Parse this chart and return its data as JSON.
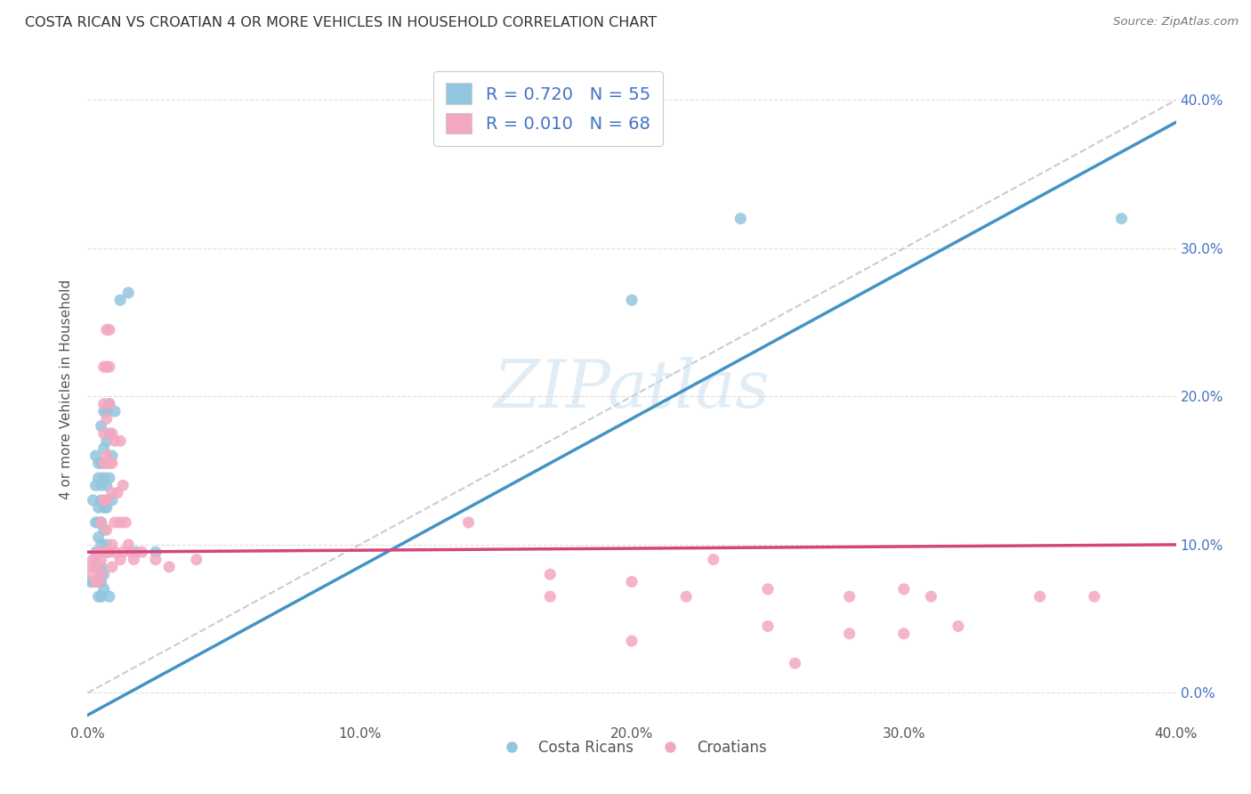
{
  "title": "COSTA RICAN VS CROATIAN 4 OR MORE VEHICLES IN HOUSEHOLD CORRELATION CHART",
  "source": "Source: ZipAtlas.com",
  "ylabel": "4 or more Vehicles in Household",
  "xlim": [
    0.0,
    0.4
  ],
  "ylim": [
    -0.02,
    0.43
  ],
  "yticks": [
    0.0,
    0.1,
    0.2,
    0.3,
    0.4
  ],
  "xticks": [
    0.0,
    0.1,
    0.2,
    0.3,
    0.4
  ],
  "costa_rican_color": "#92C5DE",
  "croatian_color": "#F4A8C0",
  "costa_rican_line_color": "#4393C3",
  "croatian_line_color": "#D6457A",
  "diagonal_color": "#cccccc",
  "background_color": "#ffffff",
  "grid_color": "#e0e0e0",
  "costa_rican_scatter": [
    [
      0.001,
      0.075
    ],
    [
      0.002,
      0.13
    ],
    [
      0.002,
      0.075
    ],
    [
      0.003,
      0.16
    ],
    [
      0.003,
      0.14
    ],
    [
      0.003,
      0.115
    ],
    [
      0.003,
      0.095
    ],
    [
      0.003,
      0.085
    ],
    [
      0.003,
      0.075
    ],
    [
      0.004,
      0.155
    ],
    [
      0.004,
      0.145
    ],
    [
      0.004,
      0.125
    ],
    [
      0.004,
      0.115
    ],
    [
      0.004,
      0.105
    ],
    [
      0.004,
      0.095
    ],
    [
      0.004,
      0.085
    ],
    [
      0.004,
      0.075
    ],
    [
      0.004,
      0.065
    ],
    [
      0.005,
      0.18
    ],
    [
      0.005,
      0.155
    ],
    [
      0.005,
      0.14
    ],
    [
      0.005,
      0.13
    ],
    [
      0.005,
      0.115
    ],
    [
      0.005,
      0.1
    ],
    [
      0.005,
      0.085
    ],
    [
      0.005,
      0.075
    ],
    [
      0.005,
      0.065
    ],
    [
      0.006,
      0.19
    ],
    [
      0.006,
      0.165
    ],
    [
      0.006,
      0.145
    ],
    [
      0.006,
      0.125
    ],
    [
      0.006,
      0.11
    ],
    [
      0.006,
      0.095
    ],
    [
      0.006,
      0.08
    ],
    [
      0.006,
      0.07
    ],
    [
      0.007,
      0.19
    ],
    [
      0.007,
      0.17
    ],
    [
      0.007,
      0.155
    ],
    [
      0.007,
      0.14
    ],
    [
      0.007,
      0.125
    ],
    [
      0.007,
      0.1
    ],
    [
      0.008,
      0.195
    ],
    [
      0.008,
      0.175
    ],
    [
      0.008,
      0.145
    ],
    [
      0.008,
      0.065
    ],
    [
      0.009,
      0.16
    ],
    [
      0.009,
      0.13
    ],
    [
      0.01,
      0.19
    ],
    [
      0.012,
      0.265
    ],
    [
      0.015,
      0.27
    ],
    [
      0.018,
      0.095
    ],
    [
      0.025,
      0.095
    ],
    [
      0.2,
      0.265
    ],
    [
      0.24,
      0.32
    ],
    [
      0.38,
      0.32
    ]
  ],
  "croatian_scatter": [
    [
      0.001,
      0.085
    ],
    [
      0.002,
      0.09
    ],
    [
      0.002,
      0.08
    ],
    [
      0.003,
      0.09
    ],
    [
      0.003,
      0.075
    ],
    [
      0.004,
      0.095
    ],
    [
      0.004,
      0.085
    ],
    [
      0.004,
      0.075
    ],
    [
      0.005,
      0.09
    ],
    [
      0.005,
      0.08
    ],
    [
      0.005,
      0.115
    ],
    [
      0.006,
      0.22
    ],
    [
      0.006,
      0.195
    ],
    [
      0.006,
      0.175
    ],
    [
      0.006,
      0.155
    ],
    [
      0.006,
      0.13
    ],
    [
      0.007,
      0.245
    ],
    [
      0.007,
      0.22
    ],
    [
      0.007,
      0.185
    ],
    [
      0.007,
      0.16
    ],
    [
      0.007,
      0.13
    ],
    [
      0.007,
      0.11
    ],
    [
      0.007,
      0.095
    ],
    [
      0.008,
      0.245
    ],
    [
      0.008,
      0.22
    ],
    [
      0.008,
      0.195
    ],
    [
      0.008,
      0.155
    ],
    [
      0.008,
      0.095
    ],
    [
      0.009,
      0.175
    ],
    [
      0.009,
      0.155
    ],
    [
      0.009,
      0.135
    ],
    [
      0.009,
      0.1
    ],
    [
      0.009,
      0.085
    ],
    [
      0.01,
      0.17
    ],
    [
      0.01,
      0.115
    ],
    [
      0.01,
      0.095
    ],
    [
      0.011,
      0.135
    ],
    [
      0.012,
      0.17
    ],
    [
      0.012,
      0.115
    ],
    [
      0.012,
      0.09
    ],
    [
      0.013,
      0.14
    ],
    [
      0.013,
      0.095
    ],
    [
      0.014,
      0.115
    ],
    [
      0.015,
      0.1
    ],
    [
      0.016,
      0.095
    ],
    [
      0.017,
      0.09
    ],
    [
      0.02,
      0.095
    ],
    [
      0.025,
      0.09
    ],
    [
      0.03,
      0.085
    ],
    [
      0.04,
      0.09
    ],
    [
      0.14,
      0.115
    ],
    [
      0.17,
      0.065
    ],
    [
      0.22,
      0.065
    ],
    [
      0.25,
      0.07
    ],
    [
      0.28,
      0.065
    ],
    [
      0.3,
      0.07
    ],
    [
      0.31,
      0.065
    ],
    [
      0.32,
      0.045
    ],
    [
      0.35,
      0.065
    ],
    [
      0.37,
      0.065
    ],
    [
      0.25,
      0.045
    ],
    [
      0.28,
      0.04
    ],
    [
      0.3,
      0.04
    ],
    [
      0.2,
      0.035
    ],
    [
      0.26,
      0.02
    ],
    [
      0.17,
      0.08
    ],
    [
      0.2,
      0.075
    ],
    [
      0.23,
      0.09
    ]
  ],
  "cr_line_x": [
    0.0,
    0.4
  ],
  "cr_line_y": [
    -0.015,
    0.385
  ],
  "hr_line_x": [
    0.0,
    0.4
  ],
  "hr_line_y": [
    0.095,
    0.1
  ]
}
